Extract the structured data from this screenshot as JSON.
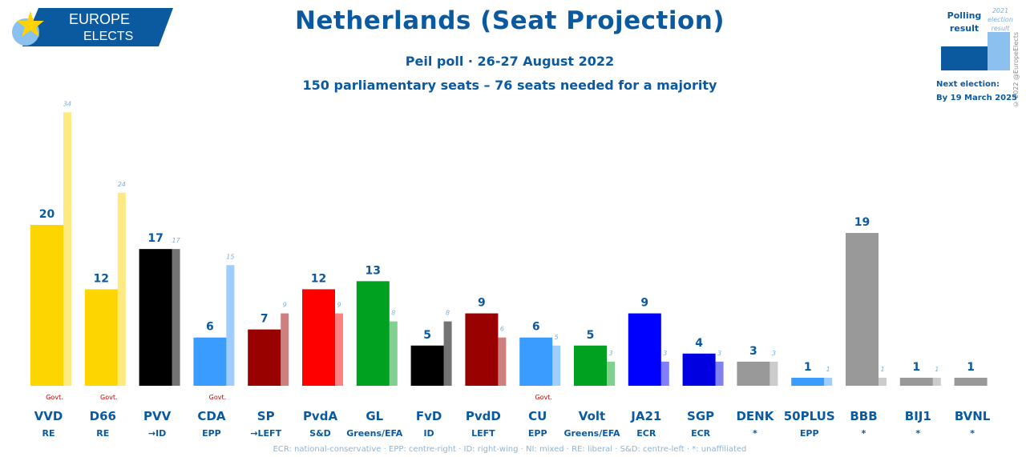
{
  "header": {
    "logo_line1": "EUROPE",
    "logo_line2": "ELECTS",
    "title": "Netherlands (Seat Projection)",
    "subtitle_poll": "Peil poll · 26-27 August 2022",
    "subtitle_seats": "150 parliamentary seats – 76 seats needed for a majority"
  },
  "legend": {
    "polling_label": "Polling result",
    "election_label": "2021 election result",
    "next_election_label": "Next election:",
    "next_election_date": "By 19 March 2025",
    "copyright": "© 2022 @EuropeElects"
  },
  "footnote": "ECR: national-conservative · EPP: centre-right · ID: right-wing · NI: mixed · RE: liberal · S&D: centre-left · *: unaffiliated",
  "chart_data": {
    "type": "bar",
    "title": "Netherlands (Seat Projection)",
    "ylim": [
      0,
      34
    ],
    "categories": [
      "VVD",
      "D66",
      "PVV",
      "CDA",
      "SP",
      "PvdA",
      "GL",
      "FvD",
      "PvdD",
      "CU",
      "Volt",
      "JA21",
      "SGP",
      "DENK",
      "50PLUS",
      "BBB",
      "BIJ1",
      "BVNL"
    ],
    "groups": [
      "RE",
      "RE",
      "→ID",
      "EPP",
      "→LEFT",
      "S&D",
      "Greens/EFA",
      "ID",
      "LEFT",
      "EPP",
      "Greens/EFA",
      "ECR",
      "ECR",
      "*",
      "EPP",
      "*",
      "*",
      "*"
    ],
    "govt_label": "Govt.",
    "govt": [
      true,
      true,
      false,
      true,
      false,
      false,
      false,
      false,
      false,
      true,
      false,
      false,
      false,
      false,
      false,
      false,
      false,
      false
    ],
    "series": [
      {
        "name": "Polling result",
        "values": [
          20,
          12,
          17,
          6,
          7,
          12,
          13,
          5,
          9,
          6,
          5,
          9,
          4,
          3,
          1,
          19,
          1,
          1
        ]
      },
      {
        "name": "2021 election result",
        "values": [
          34,
          24,
          17,
          15,
          9,
          9,
          8,
          8,
          6,
          5,
          3,
          3,
          3,
          3,
          1,
          1,
          1,
          null
        ]
      }
    ],
    "colors": [
      "#fdd500",
      "#fdd500",
      "#000000",
      "#3b9cff",
      "#990000",
      "#ff0000",
      "#00a020",
      "#000000",
      "#990000",
      "#3b9cff",
      "#00a020",
      "#0000ff",
      "#0000e0",
      "#999999",
      "#3b9cff",
      "#999999",
      "#999999",
      "#999999"
    ]
  }
}
